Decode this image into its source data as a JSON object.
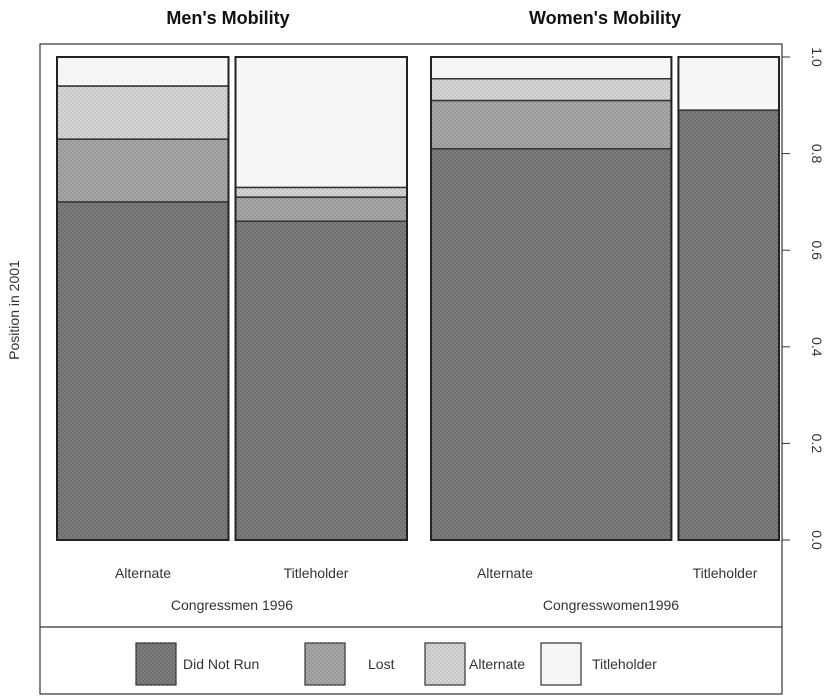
{
  "chart_data": {
    "type": "bar",
    "subtype": "mosaic",
    "panels": [
      {
        "title": "Men's Mobility",
        "group_label": "Congressmen 1996",
        "columns": [
          {
            "label": "Alternate",
            "width_share": 0.5,
            "values": {
              "Did Not Run": 0.7,
              "Lost": 0.13,
              "Alternate": 0.11,
              "Titleholder": 0.06
            }
          },
          {
            "label": "Titleholder",
            "width_share": 0.5,
            "values": {
              "Did Not Run": 0.66,
              "Lost": 0.05,
              "Alternate": 0.02,
              "Titleholder": 0.27
            }
          }
        ]
      },
      {
        "title": "Women's Mobility",
        "group_label": "Congresswomen1996",
        "columns": [
          {
            "label": "Alternate",
            "width_share": 0.705,
            "values": {
              "Did Not Run": 0.81,
              "Lost": 0.1,
              "Alternate": 0.045,
              "Titleholder": 0.045
            }
          },
          {
            "label": "Titleholder",
            "width_share": 0.295,
            "values": {
              "Did Not Run": 0.89,
              "Lost": 0.0,
              "Alternate": 0.0,
              "Titleholder": 0.11
            }
          }
        ]
      }
    ],
    "categories": [
      "Did Not Run",
      "Lost",
      "Alternate",
      "Titleholder"
    ],
    "colors": {
      "Did Not Run": "#767676",
      "Lost": "#a3a3a3",
      "Alternate": "#d4d4d4",
      "Titleholder": "#f6f6f6"
    },
    "ylabel": "Position in 2001",
    "ylim": [
      0,
      1
    ],
    "yticks": [
      "0.0",
      "0.2",
      "0.4",
      "0.6",
      "0.8",
      "1.0"
    ],
    "legend": {
      "position": "bottom",
      "labels": [
        "Did Not Run",
        "Lost",
        "Alternate",
        "Titleholder"
      ]
    },
    "grid": false
  }
}
